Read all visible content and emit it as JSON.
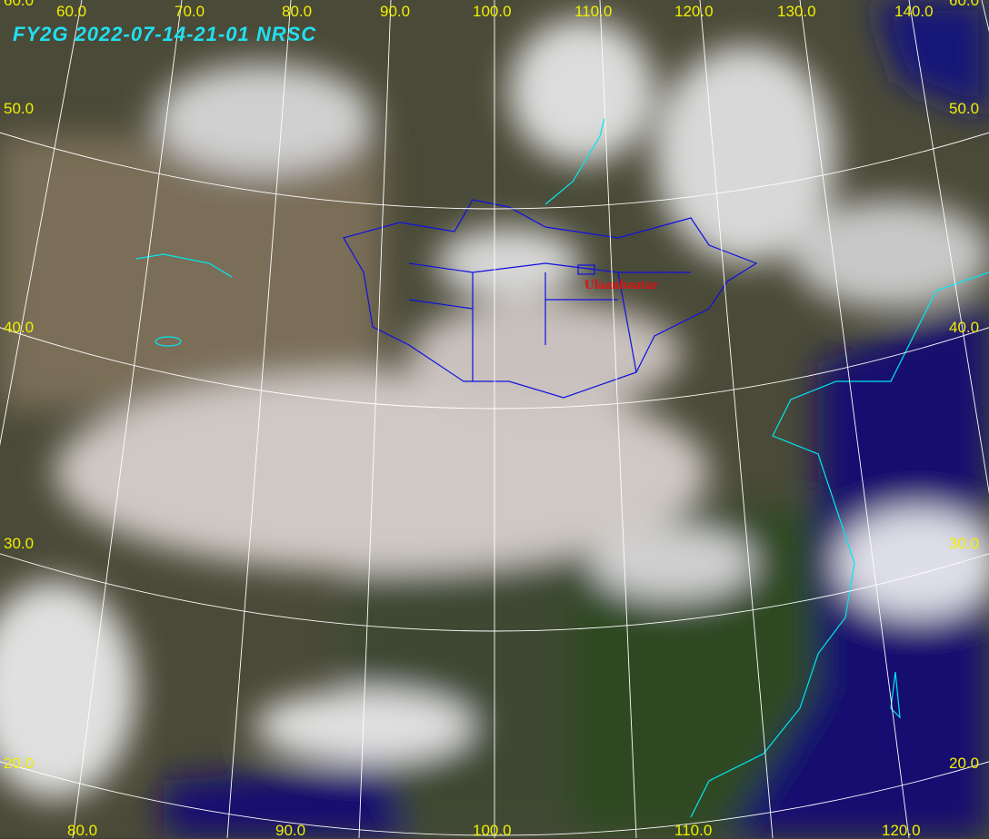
{
  "title": "FY2G  2022-07-14-21-01  NRSC",
  "city_label": "Ulaanbaatar",
  "colors": {
    "graticule": "#ffffff",
    "labels": "#f0f000",
    "coastline": "#00e8f0",
    "borders": "#1010e0",
    "city": "#e01010",
    "title": "#20e0f0"
  },
  "top_labels": [
    "60.0",
    "70.0",
    "80.0",
    "90.0",
    "100.0",
    "110.0",
    "120.0",
    "130.0",
    "140.0"
  ],
  "corner_top_left": "60.0",
  "corner_top_right": "60.0",
  "left_labels": [
    "50.0",
    "40.0",
    "30.0",
    "20.0"
  ],
  "right_labels": [
    "50.0",
    "40.0",
    "30.0",
    "20.0"
  ],
  "bottom_labels": [
    "80.0",
    "90.0",
    "100.0",
    "110.0",
    "120.0"
  ]
}
